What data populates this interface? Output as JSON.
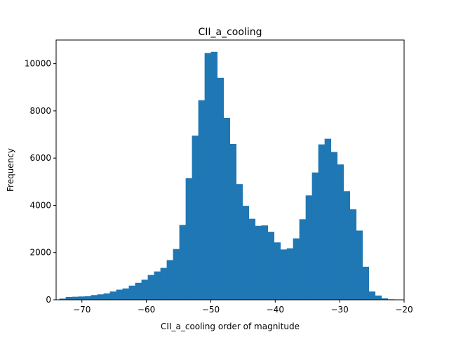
{
  "chart_data": {
    "type": "bar",
    "title": "CII_a_cooling",
    "xlabel": "CII_a_cooling order of magnitude",
    "ylabel": "Frequency",
    "xlim": [
      -74,
      -20
    ],
    "ylim": [
      0,
      11000
    ],
    "bar_color": "#1f77b4",
    "bin_width": 0.98,
    "x_ticks": [
      -70,
      -60,
      -50,
      -40,
      -30,
      -20
    ],
    "x_tick_labels": [
      "−70",
      "−60",
      "−50",
      "−40",
      "−30",
      "−20"
    ],
    "y_ticks": [
      0,
      2000,
      4000,
      6000,
      8000,
      10000
    ],
    "y_tick_labels": [
      "0",
      "2000",
      "4000",
      "6000",
      "8000",
      "10000"
    ],
    "bin_starts": [
      -73.5,
      -72.52,
      -71.54,
      -70.56,
      -69.58,
      -68.6,
      -67.62,
      -66.64,
      -65.66,
      -64.68,
      -63.7,
      -62.72,
      -61.74,
      -60.76,
      -59.78,
      -58.8,
      -57.82,
      -56.84,
      -55.86,
      -54.88,
      -53.9,
      -52.92,
      -51.94,
      -50.96,
      -49.98,
      -49.0,
      -48.02,
      -47.04,
      -46.06,
      -45.08,
      -44.1,
      -43.12,
      -42.14,
      -41.16,
      -40.18,
      -39.2,
      -38.22,
      -37.24,
      -36.26,
      -35.28,
      -34.3,
      -33.32,
      -32.34,
      -31.36,
      -30.38,
      -29.4,
      -28.42,
      -27.44,
      -26.46,
      -25.48,
      -24.5,
      -23.52,
      -22.54
    ],
    "values": [
      50,
      120,
      130,
      140,
      150,
      200,
      230,
      270,
      350,
      430,
      480,
      600,
      720,
      850,
      1050,
      1200,
      1350,
      1680,
      2150,
      3170,
      5150,
      6950,
      8450,
      10450,
      10500,
      9400,
      7700,
      6600,
      4900,
      3980,
      3430,
      3130,
      3150,
      2880,
      2430,
      2130,
      2180,
      2600,
      3410,
      4420,
      5390,
      6580,
      6820,
      6260,
      5730,
      4600,
      3830,
      2930,
      1400,
      350,
      180,
      60,
      20
    ]
  }
}
